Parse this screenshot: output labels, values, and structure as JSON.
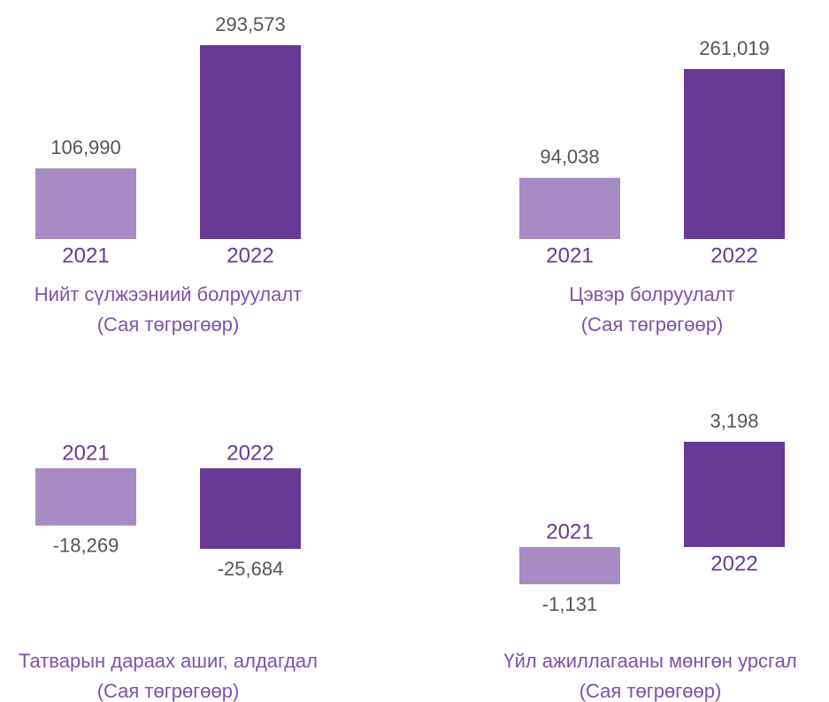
{
  "chart_data": [
    {
      "type": "bar",
      "title": "Нийт сүлжээниий болруулалт",
      "subtitle": "(Сая төгрөгөөр)",
      "categories": [
        "2021",
        "2022"
      ],
      "values": [
        106990,
        293573
      ],
      "value_labels": [
        "106,990",
        "293,573"
      ],
      "colors": [
        "#a68bc4",
        "#673a93"
      ]
    },
    {
      "type": "bar",
      "title": "Цэвэр болруулалт",
      "subtitle": "(Сая төгрөгөөр)",
      "categories": [
        "2021",
        "2022"
      ],
      "values": [
        94038,
        261019
      ],
      "value_labels": [
        "94,038",
        "261,019"
      ],
      "colors": [
        "#a68bc4",
        "#673a93"
      ]
    },
    {
      "type": "bar",
      "title": "Татварын дараах ашиг, алдагдал",
      "subtitle": "(Сая төгрөгөөр)",
      "categories": [
        "2021",
        "2022"
      ],
      "values": [
        -18269,
        -25684
      ],
      "value_labels": [
        "-18,269",
        "-25,684"
      ],
      "colors": [
        "#a68bc4",
        "#673a93"
      ]
    },
    {
      "type": "bar",
      "title": "Үйл ажиллагааны мөнгөн урсгал",
      "subtitle": "(Сая төгрөгөөр)",
      "categories": [
        "2021",
        "2022"
      ],
      "values": [
        -1131,
        3198
      ],
      "value_labels": [
        "-1,131",
        "3,198"
      ],
      "colors": [
        "#a68bc4",
        "#673a93"
      ]
    }
  ]
}
